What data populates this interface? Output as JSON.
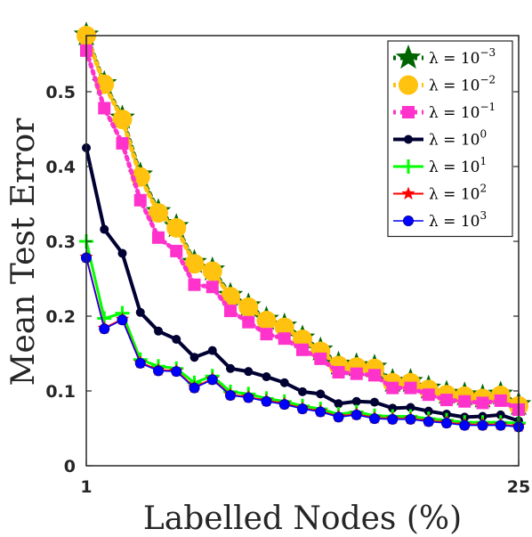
{
  "chart_data": {
    "type": "line",
    "xlabel": "Labelled Nodes (%)",
    "ylabel": "Mean Test Error",
    "x_tick_labels": [
      "1",
      "25"
    ],
    "y_tick_labels": [
      "0",
      "0.1",
      "0.2",
      "0.3",
      "0.4",
      "0.5"
    ],
    "xlim": [
      1,
      25
    ],
    "ylim": [
      0,
      0.575
    ],
    "grid": false,
    "legend_position": "top-right",
    "x": [
      1,
      2,
      3,
      4,
      5,
      6,
      7,
      8,
      9,
      10,
      11,
      12,
      13,
      14,
      15,
      16,
      17,
      18,
      19,
      20,
      21,
      22,
      23,
      24,
      25
    ],
    "series": [
      {
        "name": "λ = 10^-3",
        "label_base": "λ = 10",
        "label_exp": "−3",
        "color": "#006400",
        "marker": "star",
        "line": "dotted",
        "values": [
          0.576,
          0.511,
          0.465,
          0.389,
          0.34,
          0.32,
          0.272,
          0.262,
          0.228,
          0.214,
          0.196,
          0.187,
          0.171,
          0.155,
          0.136,
          0.134,
          0.132,
          0.113,
          0.113,
          0.104,
          0.097,
          0.095,
          0.092,
          0.096,
          0.082
        ]
      },
      {
        "name": "λ = 10^-2",
        "label_base": "λ = 10",
        "label_exp": "−2",
        "color": "#FFC20E",
        "marker": "circle",
        "line": "dotted",
        "values": [
          0.575,
          0.51,
          0.463,
          0.386,
          0.338,
          0.318,
          0.27,
          0.26,
          0.226,
          0.212,
          0.194,
          0.185,
          0.169,
          0.153,
          0.134,
          0.132,
          0.13,
          0.111,
          0.111,
          0.102,
          0.095,
          0.093,
          0.09,
          0.094,
          0.08
        ]
      },
      {
        "name": "λ = 10^-1",
        "label_base": "λ = 10",
        "label_exp": "−1",
        "color": "#FF33CC",
        "marker": "square",
        "line": "dotted",
        "values": [
          0.555,
          0.478,
          0.431,
          0.355,
          0.305,
          0.287,
          0.242,
          0.239,
          0.207,
          0.192,
          0.176,
          0.17,
          0.155,
          0.143,
          0.125,
          0.123,
          0.121,
          0.104,
          0.104,
          0.095,
          0.088,
          0.086,
          0.084,
          0.087,
          0.075
        ]
      },
      {
        "name": "λ = 10^0",
        "label_base": "λ = 10",
        "label_exp": "0",
        "color": "#000033",
        "marker": "circle",
        "line": "solid",
        "values": [
          0.425,
          0.316,
          0.284,
          0.205,
          0.18,
          0.169,
          0.145,
          0.154,
          0.13,
          0.126,
          0.119,
          0.111,
          0.099,
          0.096,
          0.083,
          0.086,
          0.085,
          0.077,
          0.078,
          0.073,
          0.069,
          0.065,
          0.066,
          0.068,
          0.06
        ]
      },
      {
        "name": "λ = 10^1",
        "label_base": "λ = 10",
        "label_exp": "1",
        "color": "#00FF00",
        "marker": "plus",
        "line": "solid",
        "values": [
          0.3,
          0.197,
          0.204,
          0.142,
          0.133,
          0.13,
          0.111,
          0.12,
          0.099,
          0.096,
          0.09,
          0.086,
          0.08,
          0.076,
          0.069,
          0.072,
          0.067,
          0.066,
          0.066,
          0.063,
          0.061,
          0.058,
          0.058,
          0.058,
          0.057
        ]
      },
      {
        "name": "λ = 10^2",
        "label_base": "λ = 10",
        "label_exp": "2",
        "color": "#FF0000",
        "marker": "star",
        "line": "solid",
        "values": [
          0.279,
          0.184,
          0.196,
          0.138,
          0.128,
          0.127,
          0.105,
          0.116,
          0.095,
          0.092,
          0.087,
          0.083,
          0.077,
          0.073,
          0.066,
          0.069,
          0.064,
          0.063,
          0.063,
          0.06,
          0.058,
          0.055,
          0.055,
          0.055,
          0.053
        ]
      },
      {
        "name": "λ = 10^3",
        "label_base": "λ = 10",
        "label_exp": "3",
        "color": "#0000FF",
        "marker": "circle",
        "line": "solid",
        "values": [
          0.278,
          0.183,
          0.195,
          0.137,
          0.127,
          0.126,
          0.104,
          0.115,
          0.094,
          0.091,
          0.086,
          0.082,
          0.076,
          0.072,
          0.065,
          0.068,
          0.063,
          0.062,
          0.062,
          0.059,
          0.057,
          0.054,
          0.054,
          0.054,
          0.052
        ]
      }
    ]
  }
}
